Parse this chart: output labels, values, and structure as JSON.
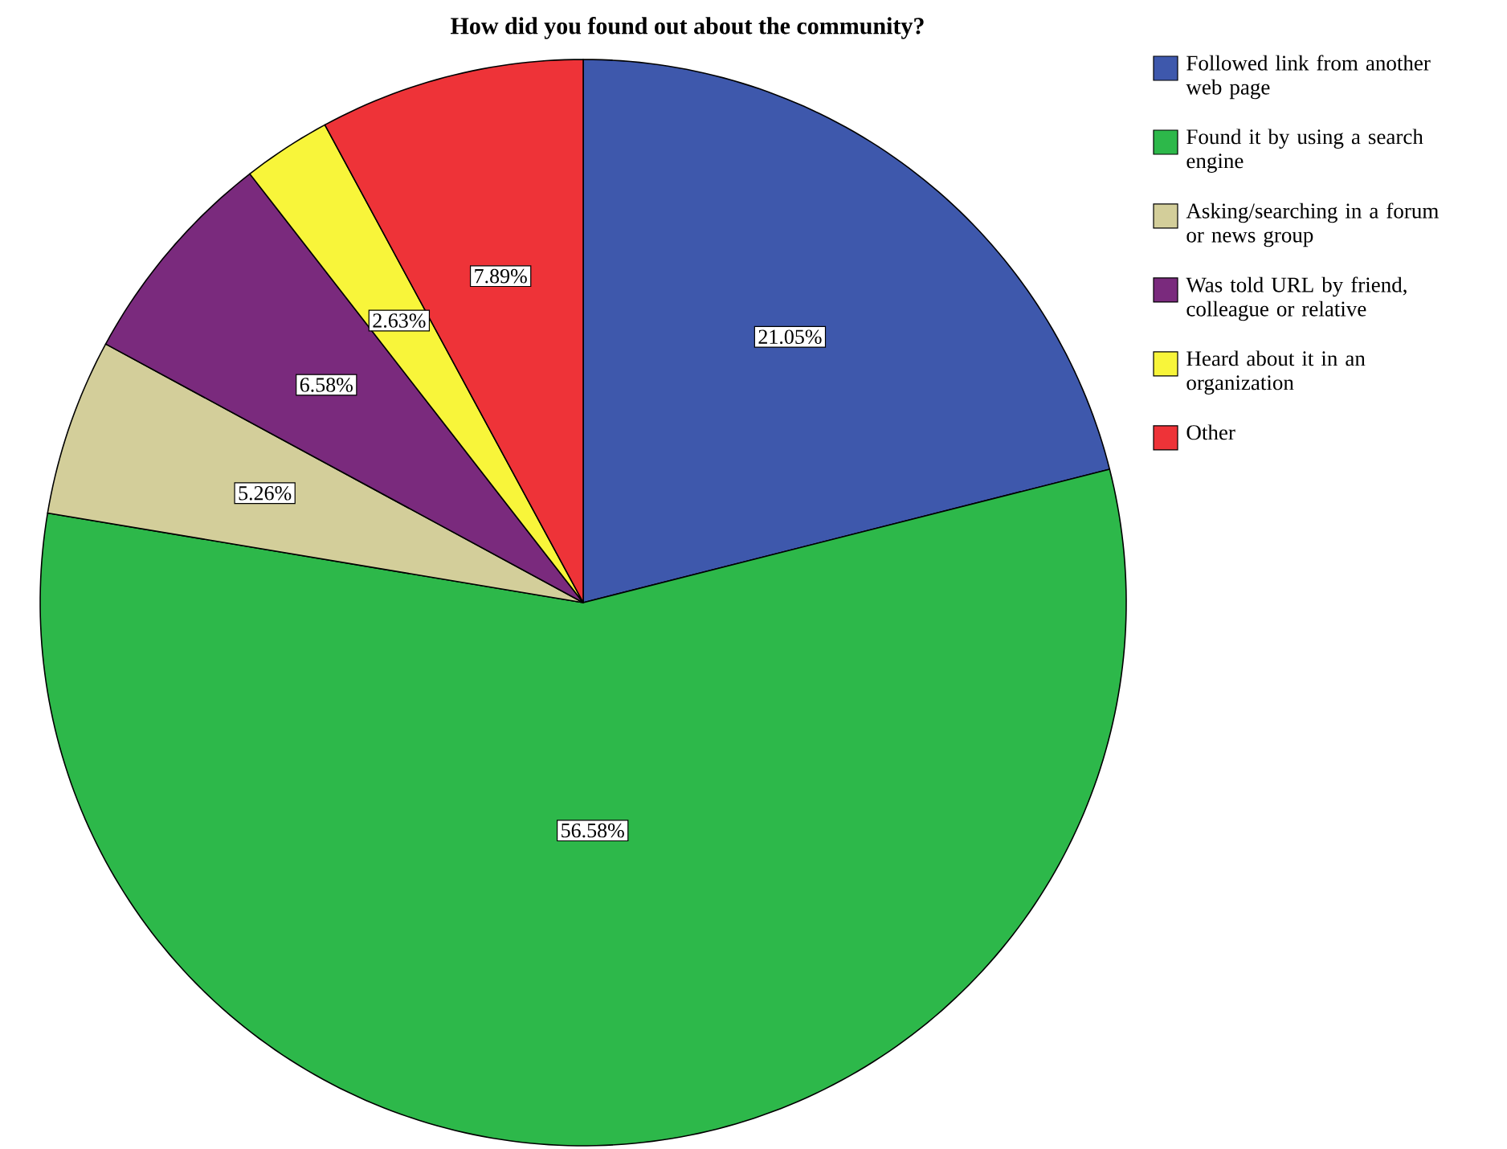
{
  "chart_data": {
    "type": "pie",
    "title": "How did you found out about the community?",
    "categories": [
      "Followed link from another web page",
      "Found it by using a search engine",
      "Asking/searching in a forum or news group",
      "Was told URL by friend, colleague or relative",
      "Heard about it in an organization",
      "Other"
    ],
    "values": [
      21.05,
      56.58,
      5.26,
      6.58,
      2.63,
      7.89
    ],
    "colors": [
      "#3e58ac",
      "#2db84a",
      "#d3ce9a",
      "#7a2a7d",
      "#f8f53a",
      "#ee3338"
    ],
    "value_labels": [
      "21.05%",
      "56.58%",
      "5.26%",
      "6.58%",
      "2.63%",
      "7.89%"
    ],
    "legend": "top right"
  }
}
